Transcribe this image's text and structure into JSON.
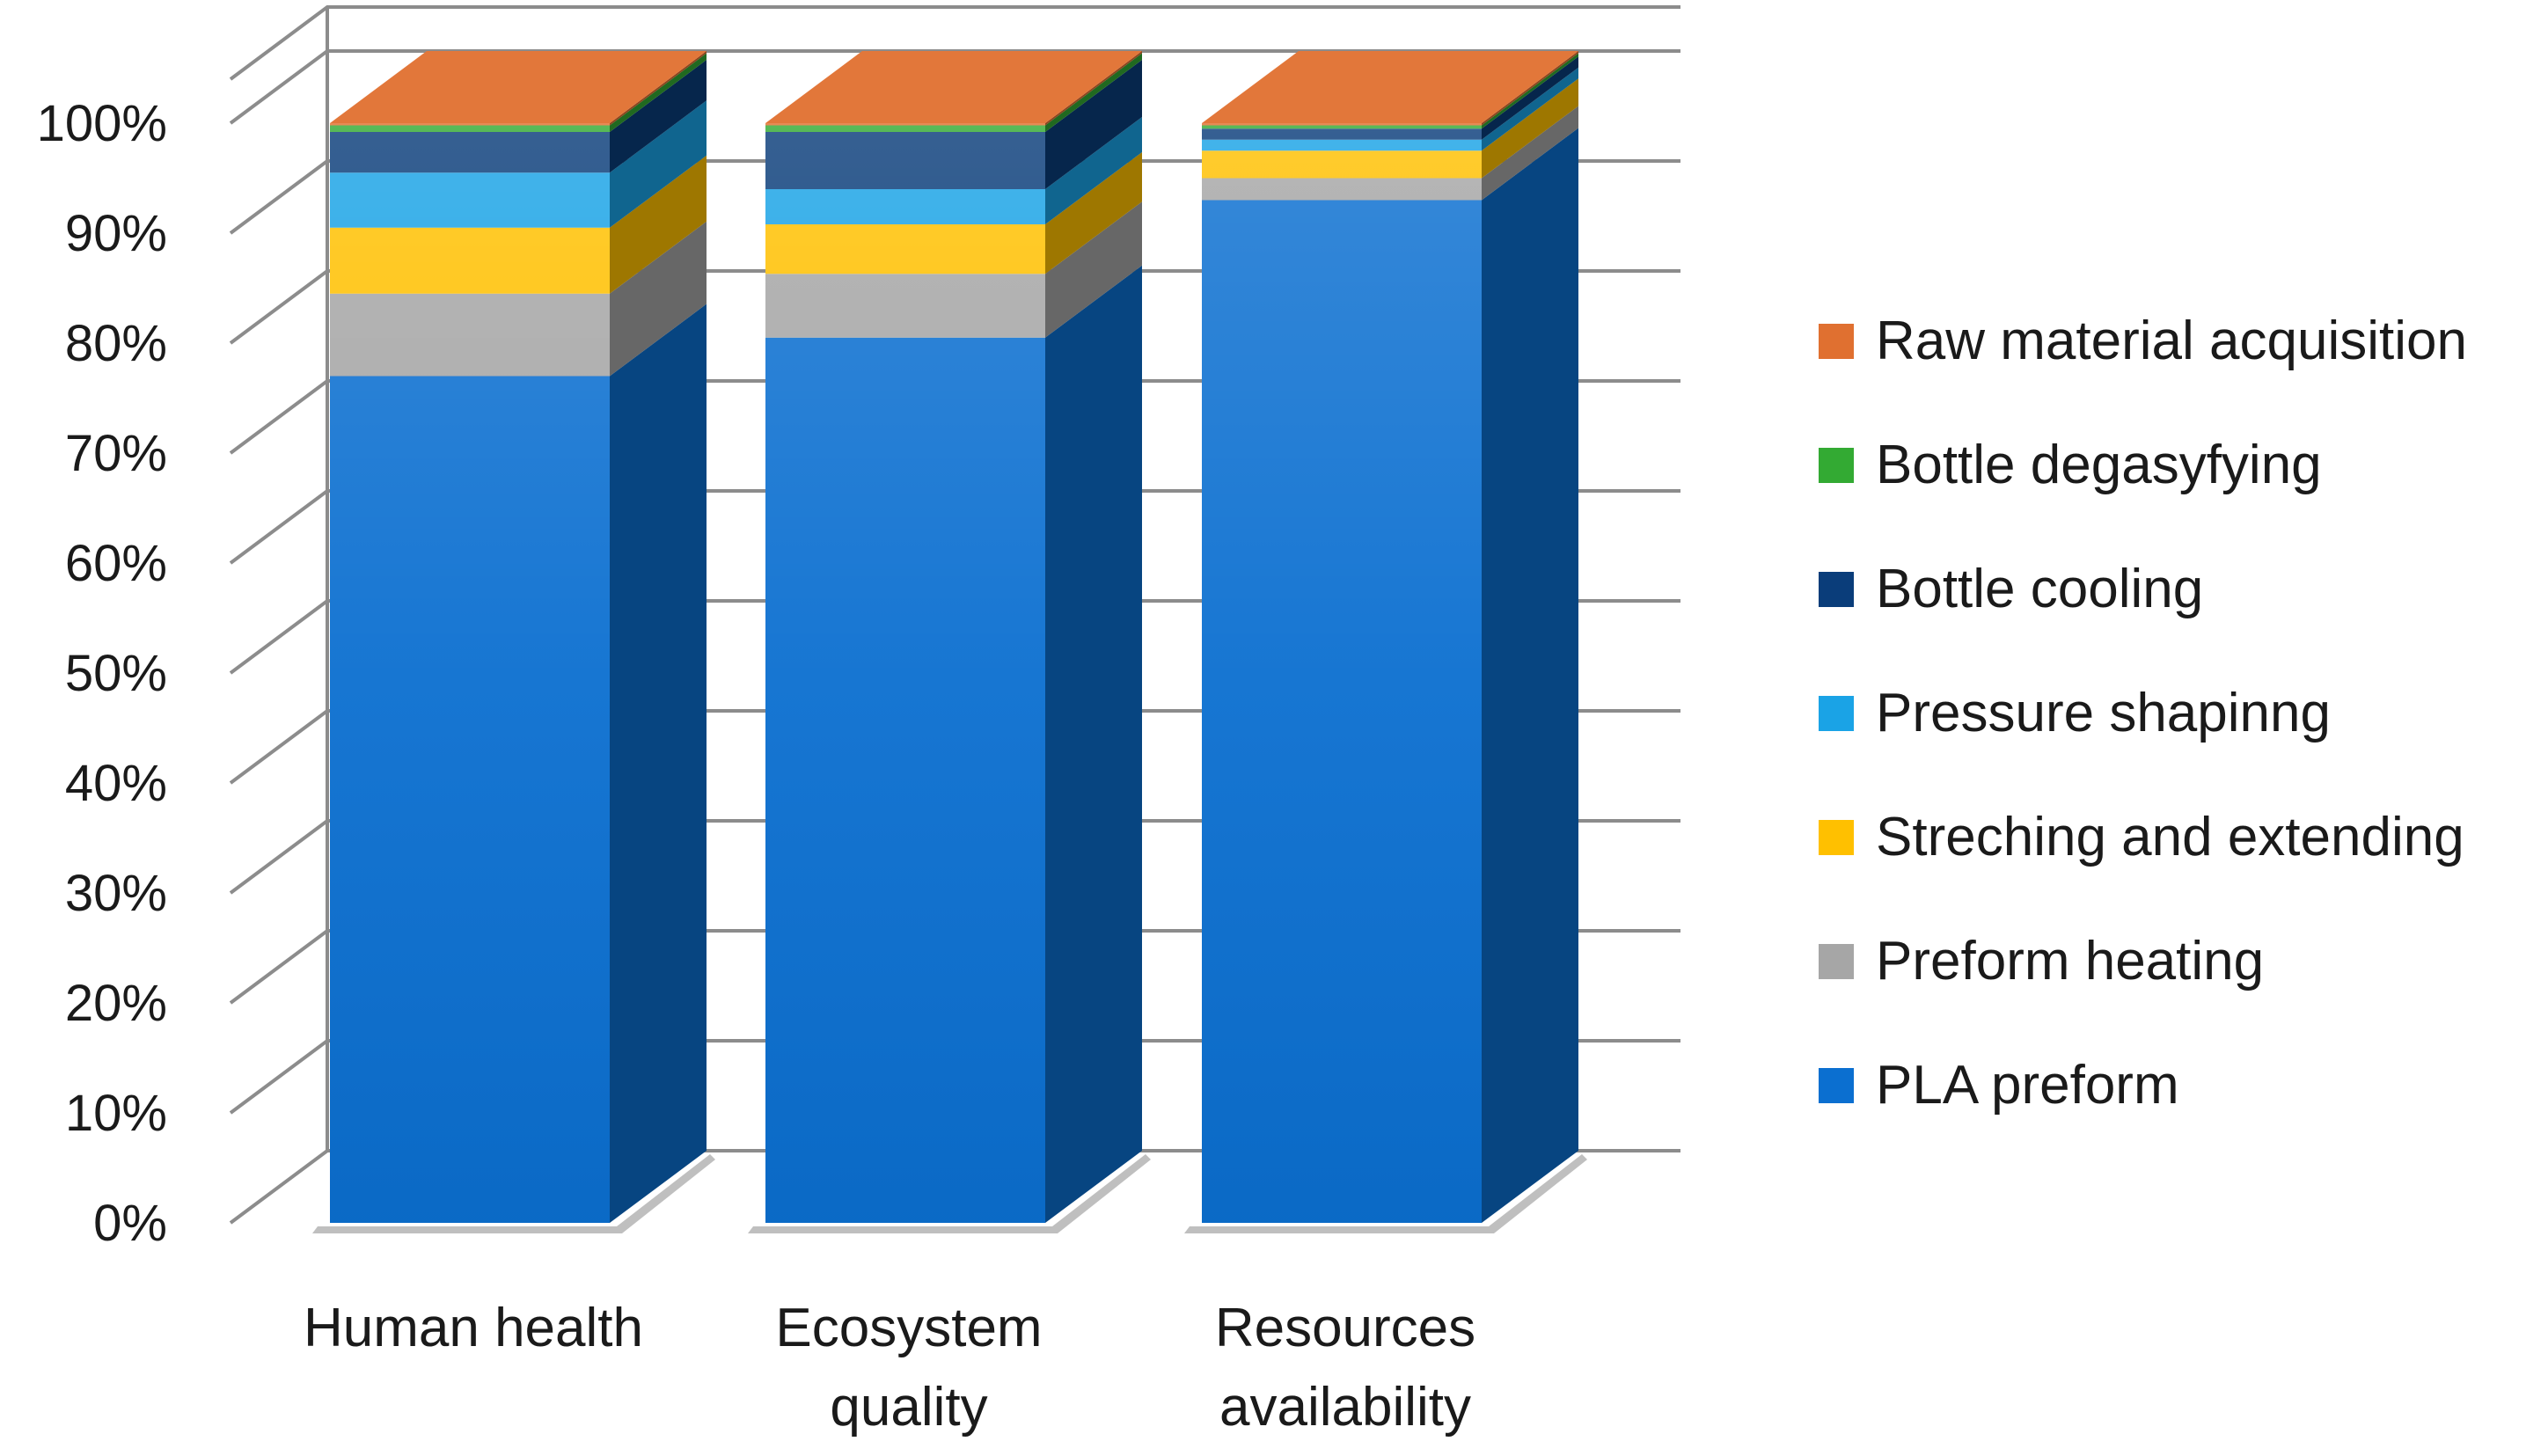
{
  "chart_data": {
    "type": "bar",
    "stacked": true,
    "percent_stacked": true,
    "three_d": true,
    "title": "",
    "xlabel": "",
    "ylabel": "",
    "ylim": [
      0,
      100
    ],
    "y_ticks": [
      "0%",
      "10%",
      "20%",
      "30%",
      "40%",
      "50%",
      "60%",
      "70%",
      "80%",
      "90%",
      "100%"
    ],
    "grid": true,
    "legend_position": "right",
    "categories": [
      [
        "Human health"
      ],
      [
        "Ecosystem",
        "quality"
      ],
      [
        "Resources",
        "availability"
      ]
    ],
    "series": [
      {
        "name": "PLA preform",
        "color": "#0b6fd0",
        "values": [
          77,
          80.5,
          93
        ]
      },
      {
        "name": "Preform heating",
        "color": "#a6a6a6",
        "values": [
          7.5,
          5.8,
          2.0
        ]
      },
      {
        "name": "Streching and extending",
        "color": "#ffc000",
        "values": [
          6.0,
          4.5,
          2.5
        ]
      },
      {
        "name": "Pressure shapinng",
        "color": "#1aa3e6",
        "values": [
          5.0,
          3.2,
          1.0
        ]
      },
      {
        "name": "Bottle cooling",
        "color": "#0a3d7a",
        "values": [
          3.7,
          5.2,
          1.0
        ]
      },
      {
        "name": "Bottle degasyfying",
        "color": "#33aa33",
        "values": [
          0.6,
          0.6,
          0.3
        ]
      },
      {
        "name": "Raw material acquisition",
        "color": "#e07030",
        "values": [
          0.2,
          0.2,
          0.2
        ]
      }
    ]
  }
}
